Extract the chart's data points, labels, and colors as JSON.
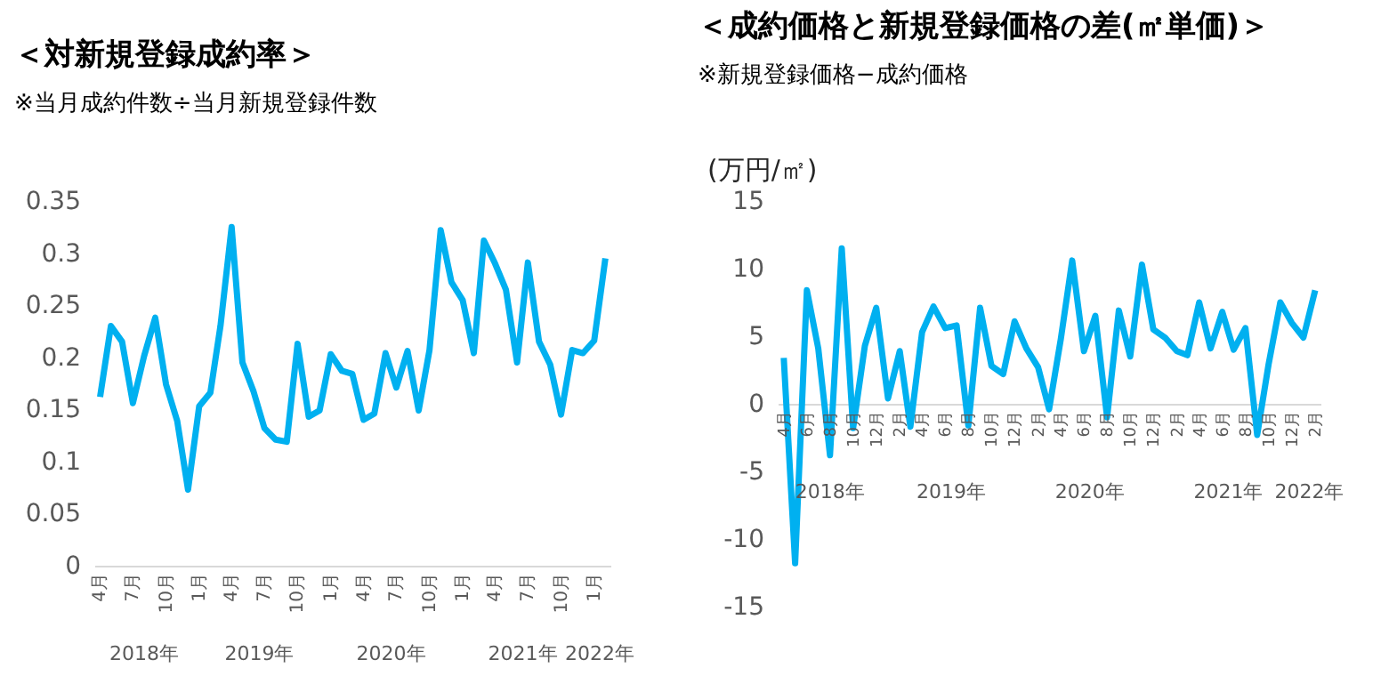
{
  "chart_data": [
    {
      "type": "line",
      "title": "＜対新規登録成約率＞",
      "subtitle": "※当月成約件数÷当月新規登録件数",
      "color": "#00b0f0",
      "x": [
        "2018-04",
        "2018-05",
        "2018-06",
        "2018-07",
        "2018-08",
        "2018-09",
        "2018-10",
        "2018-11",
        "2018-12",
        "2019-01",
        "2019-02",
        "2019-03",
        "2019-04",
        "2019-05",
        "2019-06",
        "2019-07",
        "2019-08",
        "2019-09",
        "2019-10",
        "2019-11",
        "2019-12",
        "2020-01",
        "2020-02",
        "2020-03",
        "2020-04",
        "2020-05",
        "2020-06",
        "2020-07",
        "2020-08",
        "2020-09",
        "2020-10",
        "2020-11",
        "2020-12",
        "2021-01",
        "2021-02",
        "2021-03",
        "2021-04",
        "2021-05",
        "2021-06",
        "2021-07",
        "2021-08",
        "2021-09",
        "2021-10",
        "2021-11",
        "2021-12",
        "2022-01",
        "2022-02"
      ],
      "values": [
        0.162,
        0.23,
        0.215,
        0.156,
        0.201,
        0.238,
        0.174,
        0.139,
        0.073,
        0.153,
        0.166,
        0.23,
        0.325,
        0.195,
        0.167,
        0.132,
        0.121,
        0.119,
        0.213,
        0.143,
        0.149,
        0.203,
        0.187,
        0.184,
        0.14,
        0.146,
        0.204,
        0.171,
        0.206,
        0.149,
        0.207,
        0.322,
        0.272,
        0.255,
        0.204,
        0.312,
        0.29,
        0.265,
        0.195,
        0.291,
        0.215,
        0.193,
        0.145,
        0.207,
        0.204,
        0.216,
        0.295
      ],
      "xlim": [
        "2018-03-16",
        "2022-02-15"
      ],
      "xticks": [
        {
          "value": "2018-04",
          "label": "4月"
        },
        {
          "value": "2018-07",
          "label": "7月"
        },
        {
          "value": "2018-10",
          "label": "10月"
        },
        {
          "value": "2019-01",
          "label": "1月"
        },
        {
          "value": "2019-04",
          "label": "4月"
        },
        {
          "value": "2019-07",
          "label": "7月"
        },
        {
          "value": "2019-10",
          "label": "10月"
        },
        {
          "value": "2020-01",
          "label": "1月"
        },
        {
          "value": "2020-04",
          "label": "4月"
        },
        {
          "value": "2020-07",
          "label": "7月"
        },
        {
          "value": "2020-10",
          "label": "10月"
        },
        {
          "value": "2021-01",
          "label": "1月"
        },
        {
          "value": "2021-04",
          "label": "4月"
        },
        {
          "value": "2021-07",
          "label": "7月"
        },
        {
          "value": "2021-10",
          "label": "10月"
        },
        {
          "value": "2022-01",
          "label": "1月"
        }
      ],
      "ylim": [
        0,
        0.35
      ],
      "yticks": [
        0,
        0.05,
        0.1,
        0.15,
        0.2,
        0.25,
        0.3,
        0.35
      ],
      "annotations": [
        "2018年",
        "2019年",
        "2020年",
        "2021年",
        "2022年"
      ],
      "grid": false
    },
    {
      "type": "line",
      "title": "＜成約価格と新規登録価格の差(㎡単価)＞",
      "subtitle": "※新規登録価格−成約価格",
      "ylabel": "(万円/㎡)",
      "color": "#00b0f0",
      "x": [
        "2018-04",
        "2018-05",
        "2018-06",
        "2018-07",
        "2018-08",
        "2018-09",
        "2018-10",
        "2018-11",
        "2018-12",
        "2019-01",
        "2019-02",
        "2019-03",
        "2019-04",
        "2019-05",
        "2019-06",
        "2019-07",
        "2019-08",
        "2019-09",
        "2019-10",
        "2019-11",
        "2019-12",
        "2020-01",
        "2020-02",
        "2020-03",
        "2020-04",
        "2020-05",
        "2020-06",
        "2020-07",
        "2020-08",
        "2020-09",
        "2020-10",
        "2020-11",
        "2020-12",
        "2021-01",
        "2021-02",
        "2021-03",
        "2021-04",
        "2021-05",
        "2021-06",
        "2021-07",
        "2021-08",
        "2021-09",
        "2021-10",
        "2021-11",
        "2021-12",
        "2022-01",
        "2022-02"
      ],
      "values": [
        3.4,
        -11.8,
        8.4,
        4.1,
        -3.8,
        11.5,
        -1.8,
        4.3,
        7.1,
        0.4,
        3.9,
        -1.7,
        5.3,
        7.2,
        5.6,
        5.8,
        -1.6,
        7.1,
        2.8,
        2.2,
        6.1,
        4.1,
        2.7,
        -0.4,
        4.8,
        10.6,
        3.9,
        6.5,
        -1,
        6.9,
        3.5,
        10.3,
        5.5,
        4.9,
        3.9,
        3.6,
        7.5,
        4.1,
        6.8,
        4,
        5.6,
        -2.3,
        2.9,
        7.5,
        6,
        4.9,
        8.4
      ],
      "xlim": [
        "2018-03-16",
        "2022-02-15"
      ],
      "xticks": [
        {
          "value": "2018-04",
          "label": "4月"
        },
        {
          "value": "2018-06",
          "label": "6月"
        },
        {
          "value": "2018-08",
          "label": "8月"
        },
        {
          "value": "2018-10",
          "label": "10月"
        },
        {
          "value": "2018-12",
          "label": "12月"
        },
        {
          "value": "2019-02",
          "label": "2月"
        },
        {
          "value": "2019-04",
          "label": "4月"
        },
        {
          "value": "2019-06",
          "label": "6月"
        },
        {
          "value": "2019-08",
          "label": "8月"
        },
        {
          "value": "2019-10",
          "label": "10月"
        },
        {
          "value": "2019-12",
          "label": "12月"
        },
        {
          "value": "2020-02",
          "label": "2月"
        },
        {
          "value": "2020-04",
          "label": "4月"
        },
        {
          "value": "2020-06",
          "label": "6月"
        },
        {
          "value": "2020-08",
          "label": "8月"
        },
        {
          "value": "2020-10",
          "label": "10月"
        },
        {
          "value": "2020-12",
          "label": "12月"
        },
        {
          "value": "2021-02",
          "label": "2月"
        },
        {
          "value": "2021-04",
          "label": "4月"
        },
        {
          "value": "2021-06",
          "label": "6月"
        },
        {
          "value": "2021-08",
          "label": "8月"
        },
        {
          "value": "2021-10",
          "label": "10月"
        },
        {
          "value": "2021-12",
          "label": "12月"
        },
        {
          "value": "2022-02",
          "label": "2月"
        }
      ],
      "ylim": [
        -15,
        15
      ],
      "yticks": [
        -15,
        -10,
        -5,
        0,
        5,
        10,
        15
      ],
      "annotations": [
        "2018年",
        "2019年",
        "2020年",
        "2021年",
        "2022年"
      ],
      "grid": false
    }
  ]
}
